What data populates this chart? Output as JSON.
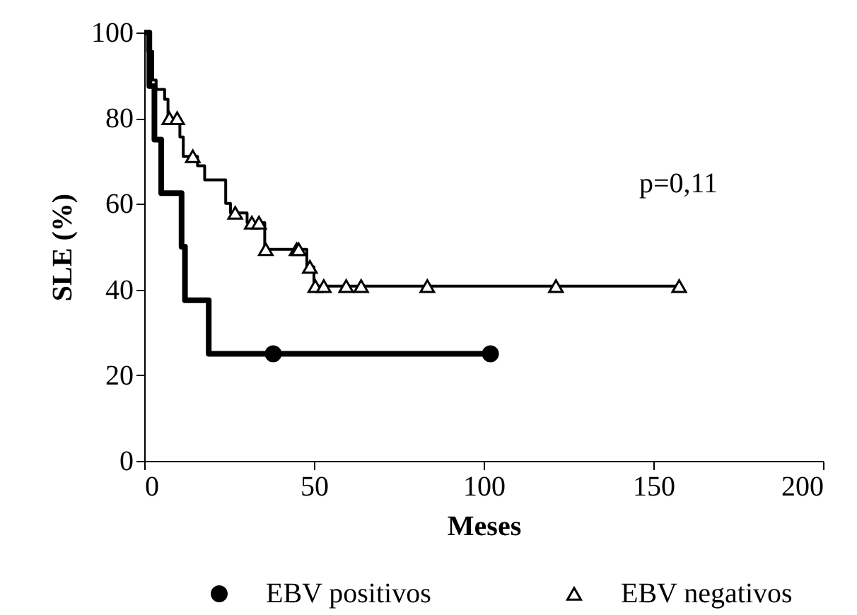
{
  "chart_data": {
    "type": "step",
    "xlabel": "Meses",
    "ylabel": "SLE (%)",
    "xlim": [
      0,
      200
    ],
    "xticks": [
      0,
      50,
      100,
      150,
      200
    ],
    "ylim": [
      0,
      100
    ],
    "yticks": [
      0,
      20,
      40,
      60,
      80,
      100
    ],
    "grid": false,
    "legend": "bottom",
    "annotations": [
      "p=0,11"
    ],
    "series": [
      {
        "name": "EBV positivos",
        "color": "#000000",
        "x": [
          0,
          1.5,
          3,
          5,
          11,
          12,
          19,
          102
        ],
        "values": [
          100,
          87.5,
          75,
          62.5,
          50,
          37.5,
          25,
          25
        ]
      },
      {
        "name": "EBV negativos",
        "color": "#000000",
        "x": [
          0,
          1,
          2.5,
          3.5,
          6,
          7,
          10.5,
          11.5,
          15.7,
          17.8,
          24,
          25.4,
          30.3,
          35.5,
          47.9,
          50,
          157.6
        ],
        "values": [
          100,
          95.6,
          88.9,
          86.7,
          84.4,
          80,
          75.6,
          71.1,
          68.9,
          65.6,
          60.1,
          57.9,
          55.6,
          49.4,
          45.3,
          40.8,
          40.8
        ]
      },
      {
        "type": "scatter",
        "color": "#000000",
        "marker": "circle",
        "x": [
          38,
          102
        ],
        "values": [
          25,
          25
        ]
      },
      {
        "type": "scatter",
        "color": "#000000",
        "marker": "triangle",
        "x": [
          7.4,
          9.7,
          14.3,
          26.8,
          31.7,
          33.8,
          35.8,
          44.9,
          45.5,
          48.8,
          50.4,
          52.9,
          59.5,
          63.9,
          83.4,
          121.3,
          157.6
        ],
        "values": [
          80,
          80,
          71.1,
          57.9,
          55.6,
          55.6,
          49.4,
          49.4,
          49.4,
          45.3,
          40.8,
          40.8,
          40.8,
          40.8,
          40.8,
          40.8,
          40.8
        ]
      }
    ]
  }
}
